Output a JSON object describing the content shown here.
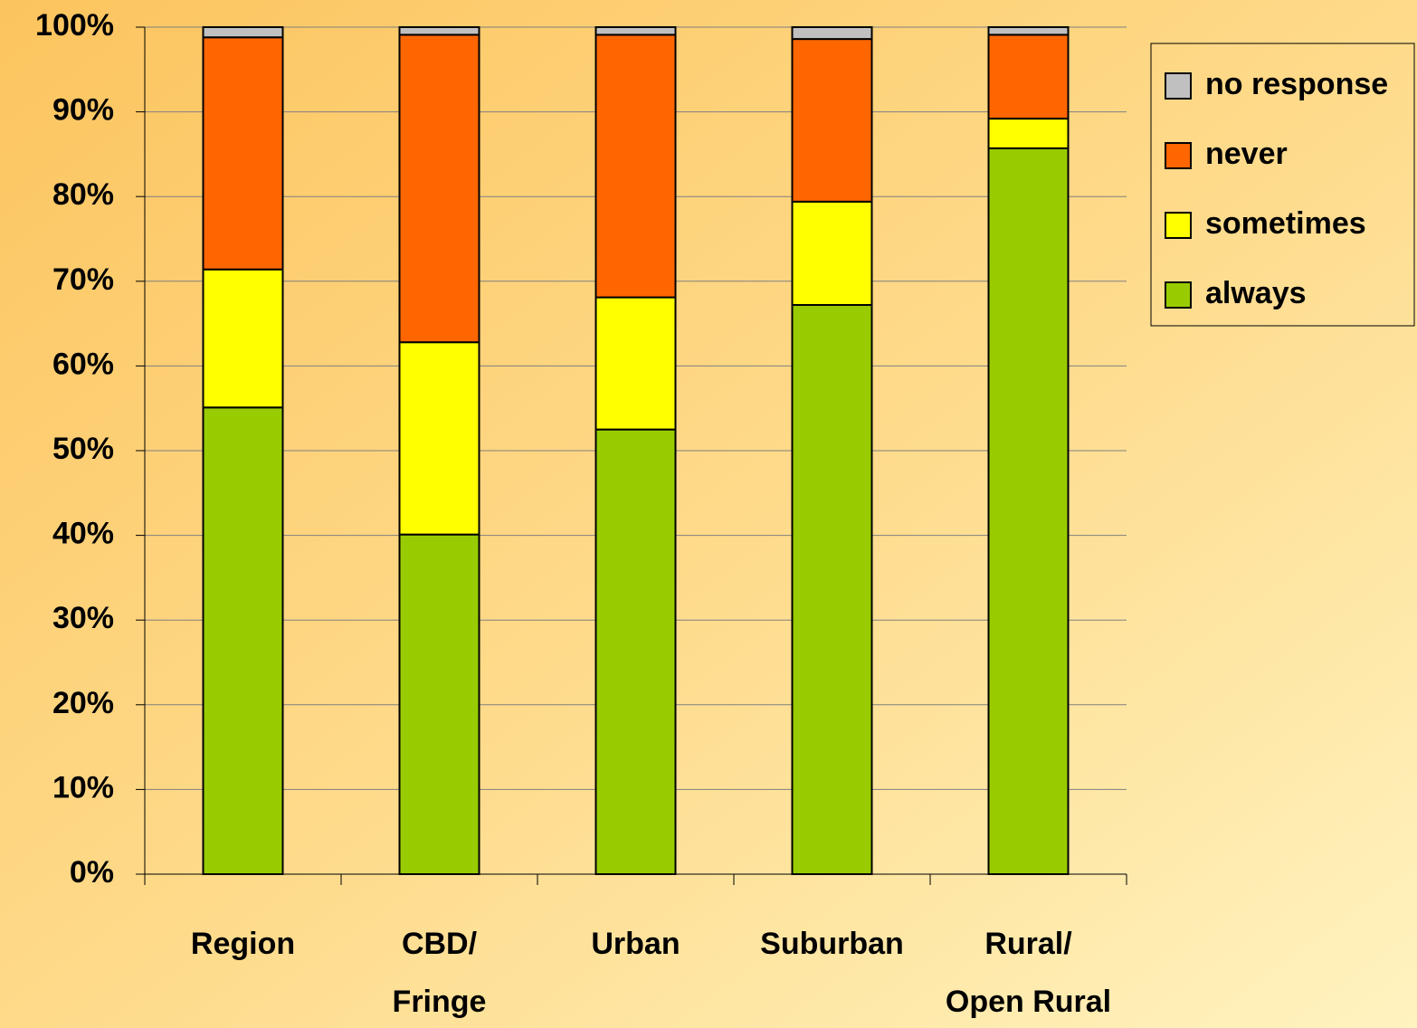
{
  "chart_data": {
    "type": "stacked_bar",
    "categories": [
      "Region",
      "CBD/\nFringe",
      "Urban",
      "Suburban",
      "Rural/\nOpen Rural"
    ],
    "series": [
      {
        "name": "always",
        "color": "#99cc00",
        "values": [
          55.1,
          40.1,
          52.5,
          67.2,
          85.7
        ]
      },
      {
        "name": "sometimes",
        "color": "#ffff00",
        "values": [
          16.3,
          22.7,
          15.6,
          12.2,
          3.5
        ]
      },
      {
        "name": "never",
        "color": "#ff6600",
        "values": [
          27.4,
          36.3,
          31.0,
          19.2,
          9.9
        ]
      },
      {
        "name": "no response",
        "color": "#c0c0c0",
        "values": [
          1.2,
          0.9,
          0.9,
          1.4,
          0.9
        ]
      }
    ],
    "ylim": [
      0,
      100
    ],
    "yticks": [
      {
        "value": 0,
        "label": "0%"
      },
      {
        "value": 10,
        "label": "10%"
      },
      {
        "value": 20,
        "label": "20%"
      },
      {
        "value": 30,
        "label": "30%"
      },
      {
        "value": 40,
        "label": "40%"
      },
      {
        "value": 50,
        "label": "50%"
      },
      {
        "value": 60,
        "label": "60%"
      },
      {
        "value": 70,
        "label": "70%"
      },
      {
        "value": 80,
        "label": "80%"
      },
      {
        "value": 90,
        "label": "90%"
      },
      {
        "value": 100,
        "label": "100%"
      }
    ],
    "grid": true,
    "legend": "right"
  }
}
